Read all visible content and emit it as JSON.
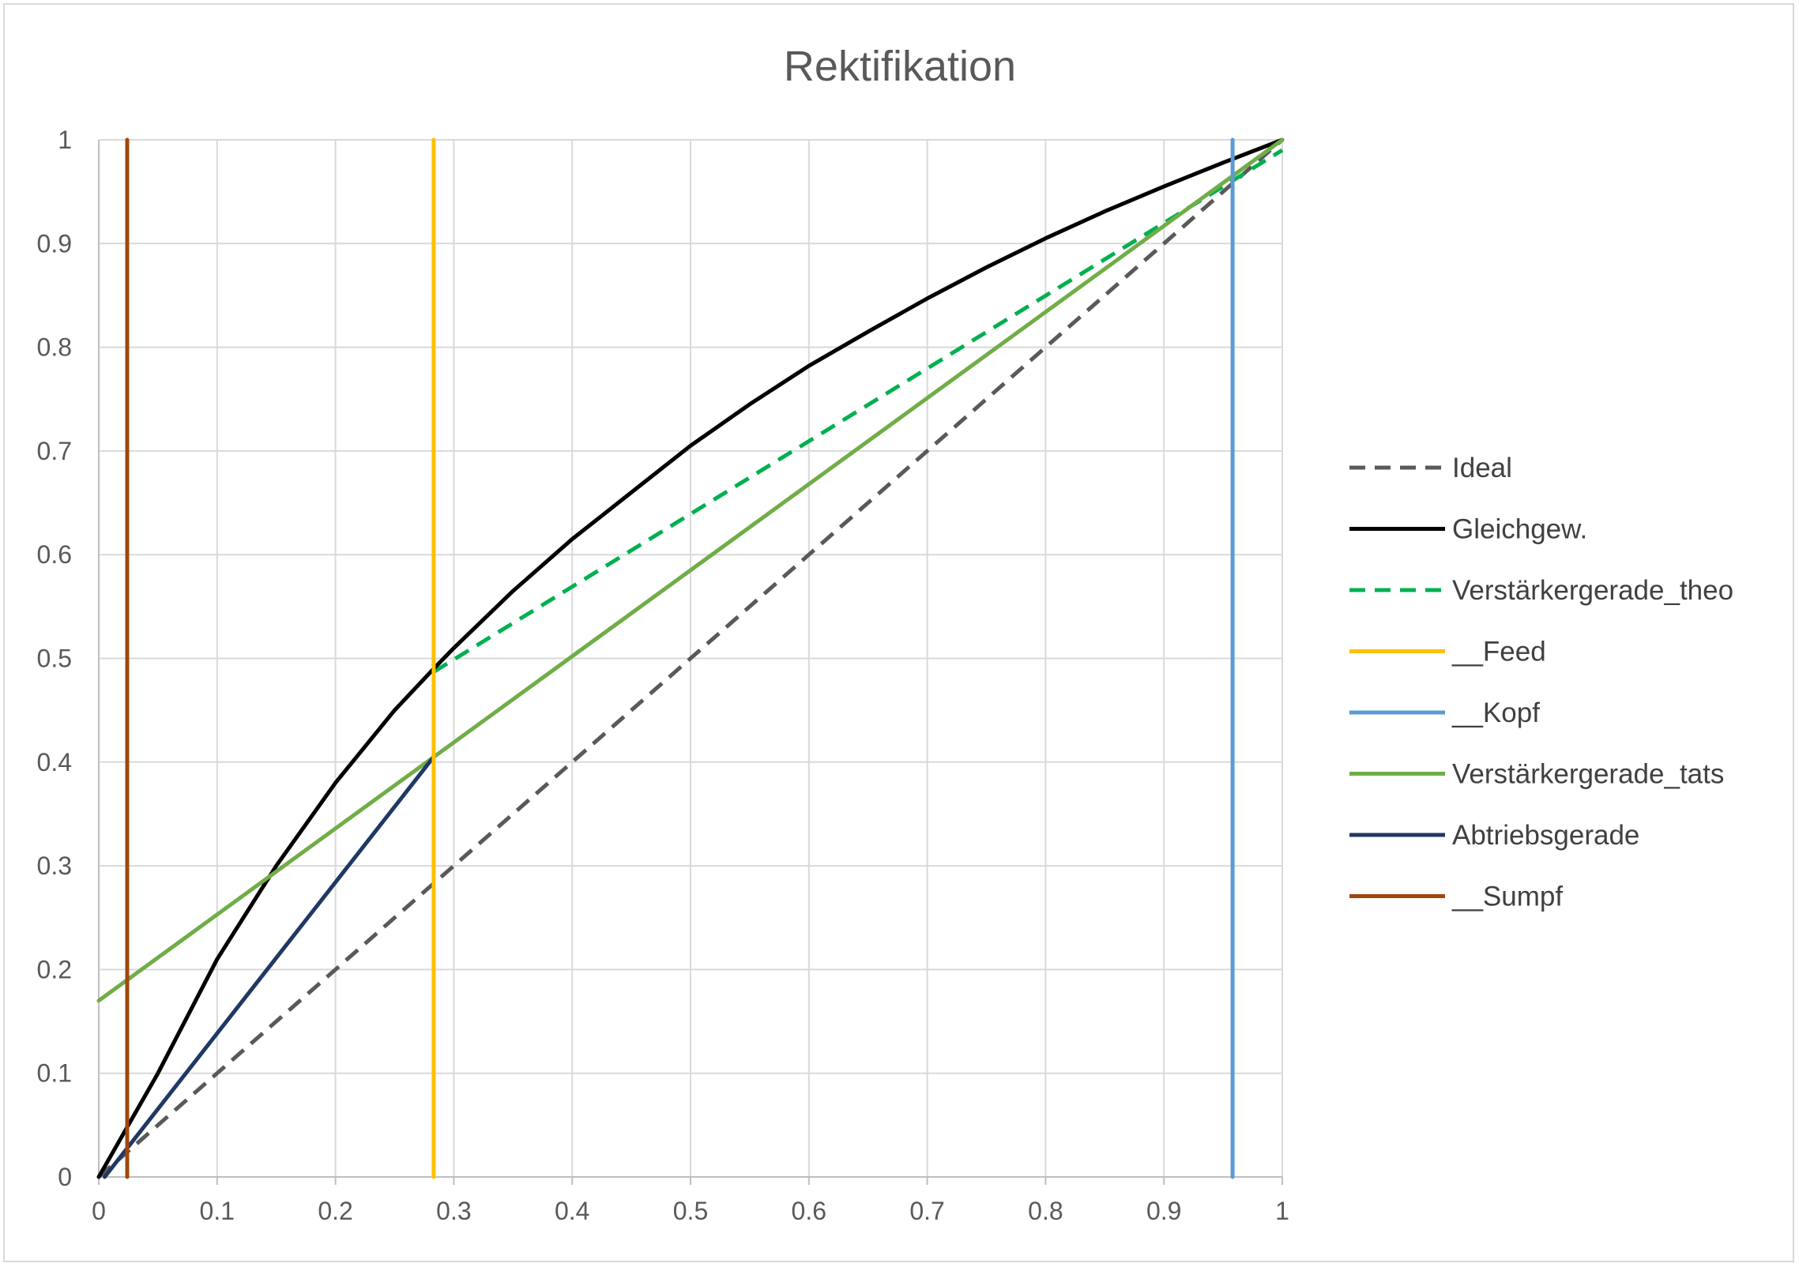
{
  "chart_data": {
    "type": "line",
    "title": "Rektifikation",
    "xlabel": "",
    "ylabel": "",
    "xlim": [
      0,
      1
    ],
    "ylim": [
      0,
      1
    ],
    "x_ticks": [
      "0",
      "0.1",
      "0.2",
      "0.3",
      "0.4",
      "0.5",
      "0.6",
      "0.7",
      "0.8",
      "0.9",
      "1"
    ],
    "y_ticks": [
      "0",
      "0.1",
      "0.2",
      "0.3",
      "0.4",
      "0.5",
      "0.6",
      "0.7",
      "0.8",
      "0.9",
      "1"
    ],
    "grid": true,
    "legend_position": "right",
    "series": [
      {
        "name": "Ideal",
        "color": "#595959",
        "dash": true,
        "points": [
          [
            0,
            0
          ],
          [
            1,
            1
          ]
        ]
      },
      {
        "name": "Gleichgew.",
        "color": "#000000",
        "dash": false,
        "points": [
          [
            0,
            0
          ],
          [
            0.05,
            0.1
          ],
          [
            0.1,
            0.21
          ],
          [
            0.15,
            0.3
          ],
          [
            0.2,
            0.38
          ],
          [
            0.25,
            0.45
          ],
          [
            0.283,
            0.49
          ],
          [
            0.3,
            0.51
          ],
          [
            0.35,
            0.565
          ],
          [
            0.4,
            0.615
          ],
          [
            0.45,
            0.66
          ],
          [
            0.5,
            0.705
          ],
          [
            0.55,
            0.745
          ],
          [
            0.6,
            0.782
          ],
          [
            0.65,
            0.815
          ],
          [
            0.7,
            0.847
          ],
          [
            0.75,
            0.877
          ],
          [
            0.8,
            0.905
          ],
          [
            0.85,
            0.931
          ],
          [
            0.9,
            0.955
          ],
          [
            0.95,
            0.978
          ],
          [
            1,
            1
          ]
        ]
      },
      {
        "name": "Verstärkergerade_theo",
        "color": "#00b050",
        "dash": true,
        "points": [
          [
            0.283,
            0.487
          ],
          [
            1,
            0.99
          ]
        ]
      },
      {
        "name": "__Feed",
        "color": "#ffc000",
        "dash": false,
        "points": [
          [
            0.283,
            0
          ],
          [
            0.283,
            1
          ]
        ]
      },
      {
        "name": "__Kopf",
        "color": "#5b9bd5",
        "dash": false,
        "points": [
          [
            0.958,
            0
          ],
          [
            0.958,
            1
          ]
        ]
      },
      {
        "name": "Verstärkergerade_tats",
        "color": "#70ad47",
        "dash": false,
        "points": [
          [
            0,
            0.17
          ],
          [
            1,
            1
          ]
        ]
      },
      {
        "name": "Abtriebsgerade",
        "color": "#1f3864",
        "dash": false,
        "points": [
          [
            0.005,
            0
          ],
          [
            0.283,
            0.405
          ]
        ]
      },
      {
        "name": "__Sumpf",
        "color": "#9e480e",
        "dash": false,
        "points": [
          [
            0.024,
            0
          ],
          [
            0.024,
            1
          ]
        ]
      }
    ]
  }
}
